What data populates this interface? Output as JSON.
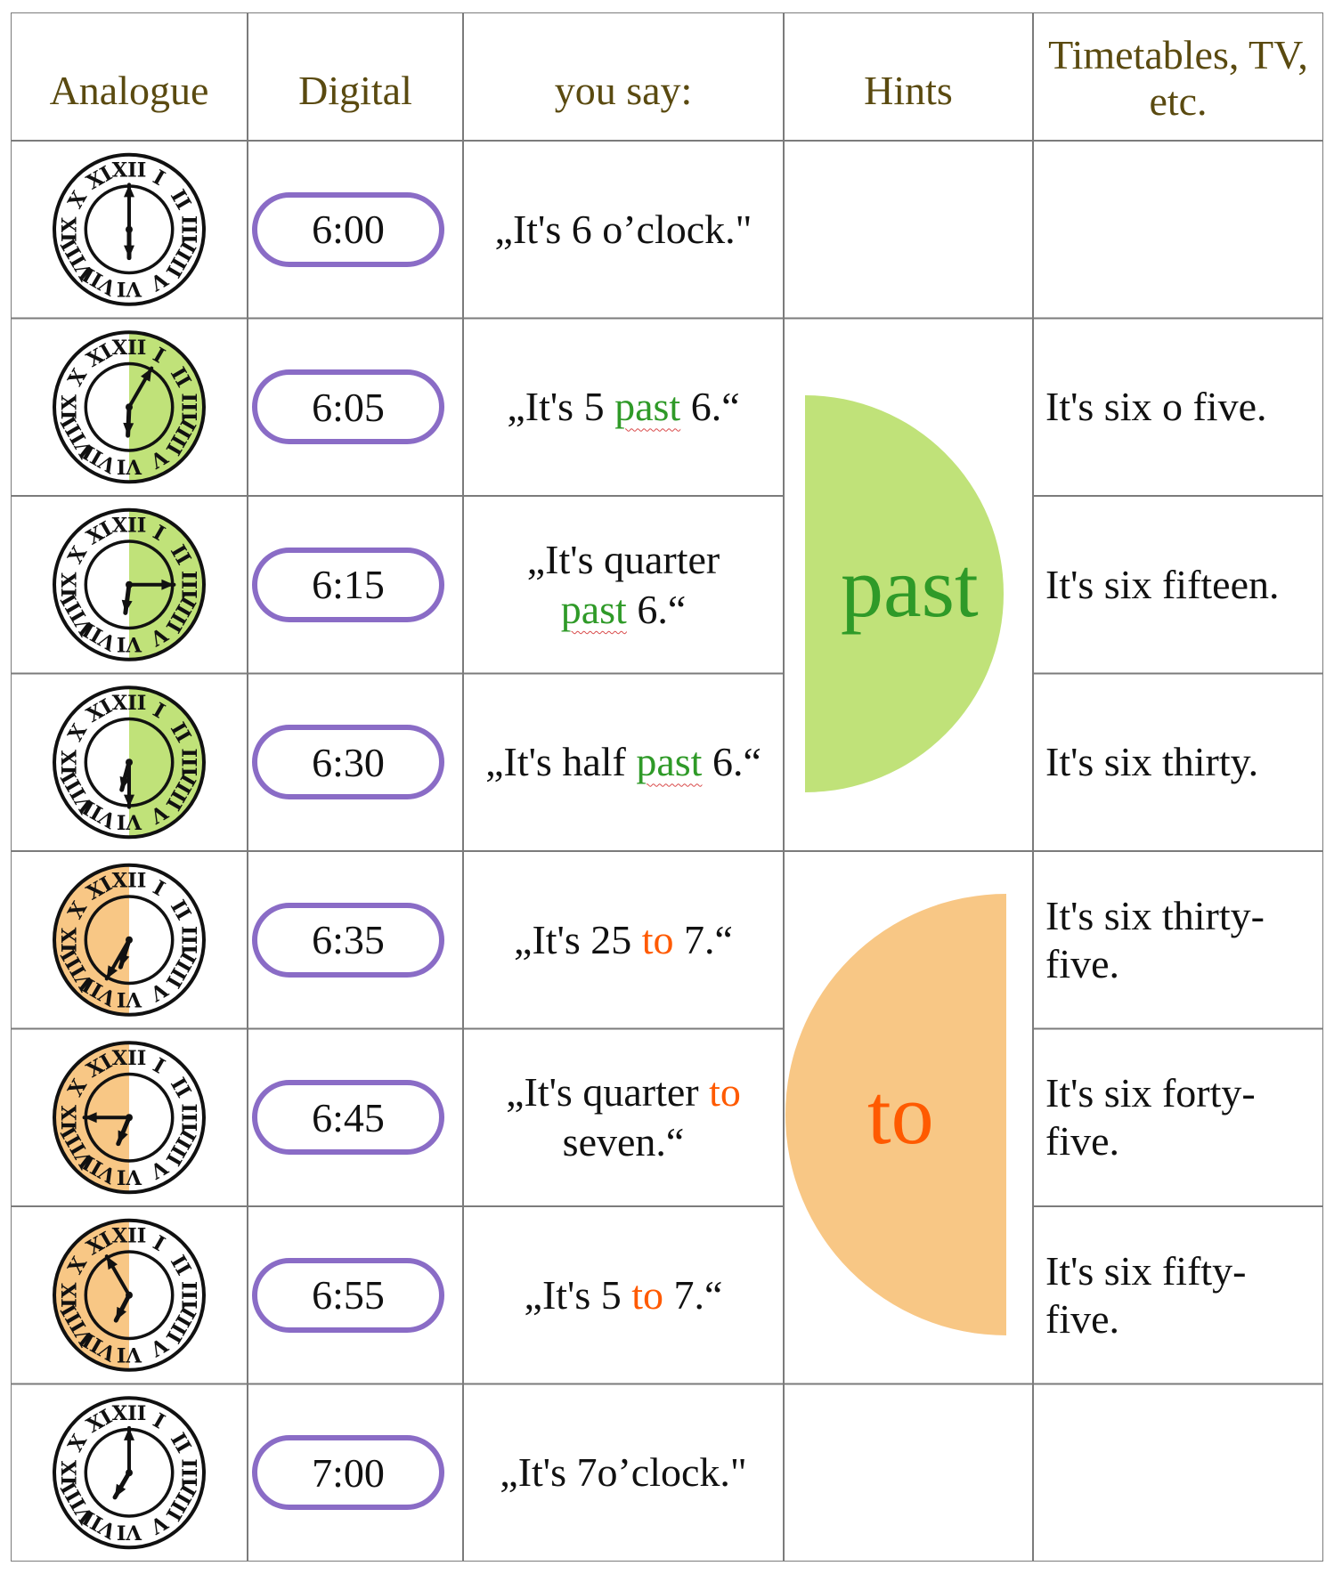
{
  "colors": {
    "past": "#c0e279",
    "past_text": "#2f9a28",
    "to": "#f8c785",
    "to_text": "#ff5a00",
    "header_text": "#5a4a10",
    "pill_border": "#8a6cc6",
    "grid": "#7b7b7b"
  },
  "headers": {
    "analogue": "Analogue",
    "digital": "Digital",
    "you_say": "you say:",
    "hints": "Hints",
    "timetables": "Timetables, TV, etc."
  },
  "hints": {
    "past": "past",
    "to": "to"
  },
  "rows": [
    {
      "clock": {
        "hour": 6,
        "minute": 0,
        "shade": "none"
      },
      "digital": "6:00",
      "say": [
        {
          "t": "„It's 6 o’clock.\""
        }
      ],
      "timetable": ""
    },
    {
      "clock": {
        "hour": 6,
        "minute": 5,
        "shade": "past"
      },
      "digital": "6:05",
      "say": [
        {
          "t": "„It's 5 "
        },
        {
          "t": "past",
          "k": "past"
        },
        {
          "t": " 6.“"
        }
      ],
      "timetable": "It's six o five."
    },
    {
      "clock": {
        "hour": 6,
        "minute": 15,
        "shade": "past"
      },
      "digital": "6:15",
      "say": [
        {
          "t": "„It's quarter"
        },
        {
          "br": true
        },
        {
          "t": "past",
          "k": "past"
        },
        {
          "t": " 6.“"
        }
      ],
      "timetable": "It's six fifteen."
    },
    {
      "clock": {
        "hour": 6,
        "minute": 30,
        "shade": "past"
      },
      "digital": "6:30",
      "say": [
        {
          "t": "„It's half "
        },
        {
          "t": "past",
          "k": "past"
        },
        {
          "t": " 6.“"
        }
      ],
      "timetable": "It's six thirty."
    },
    {
      "clock": {
        "hour": 6,
        "minute": 35,
        "shade": "to"
      },
      "digital": "6:35",
      "say": [
        {
          "t": "„It's 25 "
        },
        {
          "t": "to",
          "k": "to"
        },
        {
          "t": " 7.“"
        }
      ],
      "timetable": "It's six thirty-five."
    },
    {
      "clock": {
        "hour": 6,
        "minute": 45,
        "shade": "to"
      },
      "digital": "6:45",
      "say": [
        {
          "t": "„It's quarter "
        },
        {
          "t": "to",
          "k": "to"
        },
        {
          "br": true
        },
        {
          "t": "seven.“"
        }
      ],
      "timetable": "It's six forty-five."
    },
    {
      "clock": {
        "hour": 6,
        "minute": 55,
        "shade": "to"
      },
      "digital": "6:55",
      "say": [
        {
          "t": "„It's 5 "
        },
        {
          "t": "to",
          "k": "to"
        },
        {
          "t": " 7.“"
        }
      ],
      "timetable": "It's six fifty-five."
    },
    {
      "clock": {
        "hour": 7,
        "minute": 0,
        "shade": "none"
      },
      "digital": "7:00",
      "say": [
        {
          "t": "„It's 7o’clock.\""
        }
      ],
      "timetable": ""
    }
  ],
  "numerals": [
    "XII",
    "I",
    "II",
    "III",
    "IIII",
    "V",
    "VI",
    "VII",
    "VIII",
    "IX",
    "X",
    "XI"
  ]
}
